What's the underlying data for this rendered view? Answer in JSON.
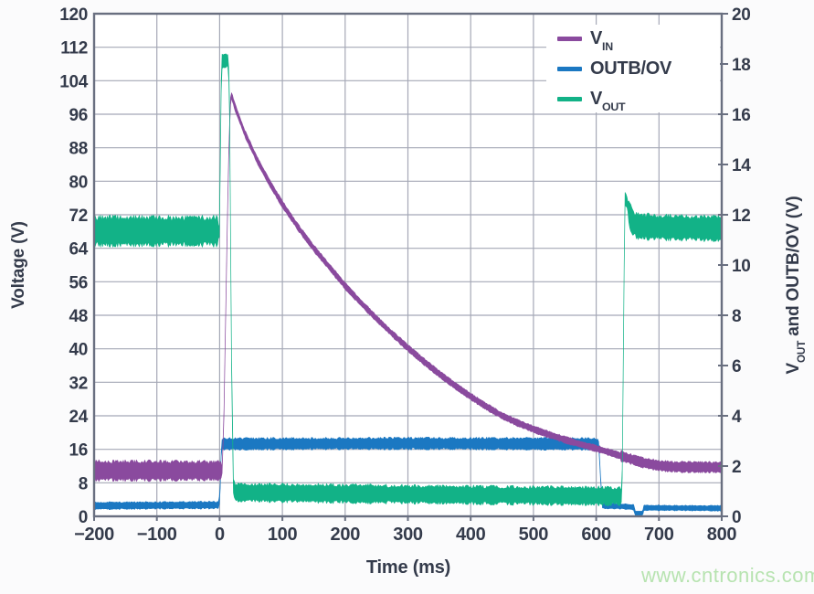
{
  "watermark": {
    "text": "www.cntronics.com",
    "color": "#b7e3b0"
  },
  "colors": {
    "vin": "#8a4a9e",
    "outb_ov": "#1b78c2",
    "vout": "#12b287",
    "grid": "#a5a8b6",
    "frame": "#696f80",
    "text": "#343b4b",
    "plot_background": "#ffffff"
  },
  "chart_data": {
    "type": "line",
    "title": "",
    "xlabel": "Time (ms)",
    "ylabel_left": "Voltage (V)",
    "ylabel_right_parts": {
      "p1": "V",
      "p2": "OUT",
      "p3": " and OUTB/OV (V)"
    },
    "xlim": [
      -200,
      800
    ],
    "ylim_left": [
      0,
      120
    ],
    "ylim_right": [
      0,
      20
    ],
    "grid": true,
    "legend_position": "top-right",
    "x_axis": {
      "values": [
        -200,
        -100,
        0,
        100,
        200,
        300,
        400,
        500,
        600,
        700,
        800
      ],
      "labels": [
        "−200",
        "−100",
        "0",
        "100",
        "200",
        "300",
        "400",
        "500",
        "600",
        "700",
        "800"
      ]
    },
    "left_axis": {
      "values": [
        0,
        8,
        16,
        24,
        32,
        40,
        48,
        56,
        64,
        72,
        80,
        88,
        96,
        104,
        112,
        120
      ],
      "labels": [
        "0",
        "8",
        "16",
        "24",
        "32",
        "40",
        "48",
        "56",
        "64",
        "72",
        "80",
        "88",
        "96",
        "104",
        "112",
        "120"
      ]
    },
    "right_axis": {
      "values": [
        0,
        2,
        4,
        6,
        8,
        10,
        12,
        14,
        16,
        18,
        20
      ],
      "labels": [
        "0",
        "2",
        "4",
        "6",
        "8",
        "10",
        "12",
        "14",
        "16",
        "18",
        "20"
      ]
    },
    "legend": [
      {
        "main": "V",
        "sub": "IN",
        "series": "vin"
      },
      {
        "main": "OUTB/OV",
        "sub": "",
        "series": "outb_ov"
      },
      {
        "main": "V",
        "sub": "OUT",
        "series": "vout"
      }
    ],
    "series": [
      {
        "name": "OUTB/OV",
        "key": "outb_ov",
        "axis": "right",
        "color": "#1b78c2",
        "points": [
          [
            -200,
            0.42
          ],
          [
            -1,
            0.45
          ],
          [
            1,
            1.2
          ],
          [
            3,
            2.88
          ],
          [
            300,
            2.9
          ],
          [
            604,
            2.88
          ],
          [
            607,
            1.5
          ],
          [
            610,
            0.42
          ],
          [
            640,
            0.4
          ],
          [
            660,
            0.36
          ],
          [
            662,
            0.12
          ],
          [
            674,
            0.12
          ],
          [
            676,
            0.34
          ],
          [
            800,
            0.32
          ]
        ],
        "noise": [
          [
            -200,
            0,
            0.16
          ],
          [
            0,
            4,
            0.1
          ],
          [
            4,
            604,
            0.26
          ],
          [
            604,
            612,
            0.1
          ],
          [
            612,
            662,
            0.12
          ],
          [
            662,
            676,
            0.06
          ],
          [
            676,
            800,
            0.12
          ]
        ]
      },
      {
        "name": "V_IN",
        "key": "vin",
        "axis": "left",
        "color": "#8a4a9e",
        "points": [
          [
            -200,
            10.9
          ],
          [
            0,
            10.9
          ],
          [
            4,
            11
          ],
          [
            7,
            25
          ],
          [
            11,
            60
          ],
          [
            15,
            90
          ],
          [
            18,
            101
          ],
          [
            25,
            97.5
          ],
          [
            40,
            91.5
          ],
          [
            60,
            85
          ],
          [
            80,
            79.5
          ],
          [
            100,
            74.5
          ],
          [
            125,
            69
          ],
          [
            150,
            64
          ],
          [
            175,
            59.5
          ],
          [
            200,
            55
          ],
          [
            225,
            51
          ],
          [
            250,
            47.2
          ],
          [
            275,
            43.6
          ],
          [
            300,
            40.2
          ],
          [
            325,
            37
          ],
          [
            350,
            34
          ],
          [
            375,
            31.2
          ],
          [
            400,
            28.6
          ],
          [
            425,
            26.2
          ],
          [
            450,
            24
          ],
          [
            475,
            22.3
          ],
          [
            500,
            20.8
          ],
          [
            525,
            19.5
          ],
          [
            550,
            18.3
          ],
          [
            575,
            17.2
          ],
          [
            600,
            16.2
          ],
          [
            625,
            15.1
          ],
          [
            650,
            13.9
          ],
          [
            675,
            12.8
          ],
          [
            700,
            12.1
          ],
          [
            725,
            11.8
          ],
          [
            800,
            11.7
          ]
        ],
        "noise": [
          [
            -200,
            3,
            2.6
          ],
          [
            3,
            22,
            0.9
          ],
          [
            22,
            640,
            0.9
          ],
          [
            640,
            800,
            1.4
          ]
        ]
      },
      {
        "name": "V_OUT",
        "key": "vout",
        "axis": "right",
        "color": "#12b287",
        "points": [
          [
            -200,
            11.35
          ],
          [
            -3,
            11.35
          ],
          [
            0,
            11.3
          ],
          [
            1,
            14
          ],
          [
            3,
            18.1
          ],
          [
            14,
            18.15
          ],
          [
            16,
            16
          ],
          [
            19,
            6
          ],
          [
            22,
            1.2
          ],
          [
            25,
            0.95
          ],
          [
            200,
            0.9
          ],
          [
            400,
            0.85
          ],
          [
            640,
            0.8
          ],
          [
            642,
            2
          ],
          [
            644,
            9
          ],
          [
            646,
            12.65
          ],
          [
            649,
            12.5
          ],
          [
            653,
            12.0
          ],
          [
            658,
            11.7
          ],
          [
            665,
            11.55
          ],
          [
            700,
            11.5
          ],
          [
            800,
            11.45
          ]
        ],
        "noise": [
          [
            -200,
            -2,
            0.64
          ],
          [
            -2,
            20,
            0.3
          ],
          [
            20,
            640,
            0.4
          ],
          [
            640,
            652,
            0.25
          ],
          [
            652,
            800,
            0.55
          ]
        ]
      }
    ]
  }
}
